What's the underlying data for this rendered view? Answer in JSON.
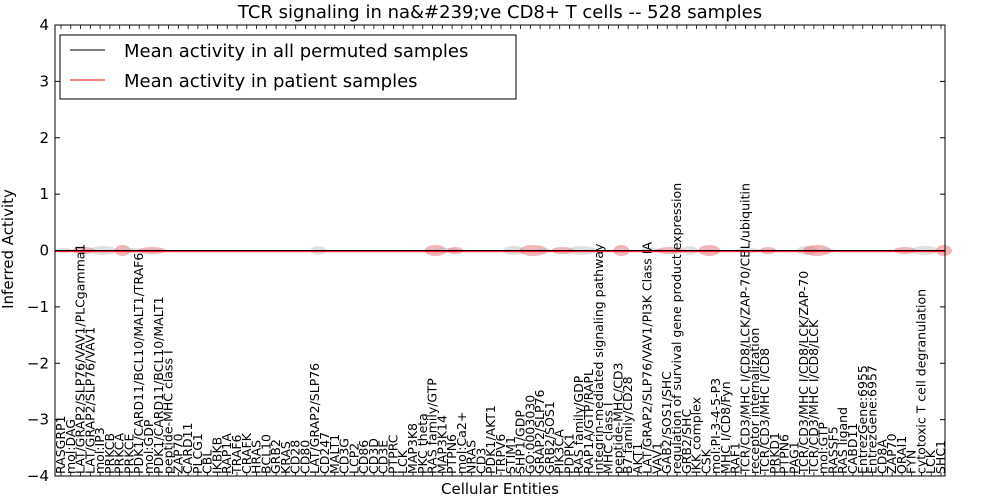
{
  "chart_data": {
    "type": "line",
    "title": "TCR signaling in na&#239;ve CD8+ T cells -- 528 samples",
    "xlabel": "Cellular Entities",
    "ylabel": "Inferred Activity",
    "ylim": [
      -4,
      4
    ],
    "yticks": [
      "4",
      "3",
      "2",
      "1",
      "0",
      "−1",
      "−2",
      "−3",
      "−4"
    ],
    "legend_position": "top-left",
    "legend": [
      {
        "label": "Mean activity in all permuted samples",
        "color": "#000000"
      },
      {
        "label": "Mean activity in patient samples",
        "color": "#ff0000"
      }
    ],
    "categories": [
      "RASGRP1",
      "mol:DAG",
      "LAT/GRAP2/SLP76/VAV1/PLCgamma1",
      "LAT/GRAP2/SLP76/VAV1",
      "mol:IP3",
      "PRKCB",
      "PRKCA",
      "PRKCE",
      "PDK1/CARD11/BCL10/MALT1/TRAF6",
      "mol:GDP",
      "PDK1/CARD11/BCL10/MALT1",
      "peptide-MHC class I",
      "ZAP70",
      "CARD11",
      "PLCG1",
      "CBL",
      "IKBKB",
      "RAP1A",
      "TRAF6",
      "CRAFK",
      "HRAS",
      "BCL10",
      "GRB2",
      "KRAS",
      "CD28",
      "CD80",
      "LAT/GRAP2/SLP76",
      "CD247",
      "MALT1",
      "CD3G",
      "LCP2",
      "CD86",
      "CD3D",
      "CD3E",
      "PTPRC",
      "LCK",
      "MAP3K8",
      "PKC theta",
      "RAS family/GTP",
      "MAP3K14",
      "PTPN6",
      "mol:Ca2+",
      "NRAS",
      "CD3",
      "PDK1/AKT1",
      "TRPV6",
      "STIM1",
      "SHP1/GDP",
      "GO:0003030",
      "GRAP2/SLP76",
      "GRB2/SOS1",
      "PIK3CA",
      "PDPK1",
      "RAS family/GDP",
      "RAP1A/GTP/RAPL",
      "integrin-mediated signaling pathway",
      "MHC class I",
      "peptide-MHC/CD3",
      "B7 family/CD28",
      "AKT1",
      "LAT/GRAP2/SLP76/VAV1/PI3K Class IA",
      "VAV1",
      "GAB2/SOS1/SHC",
      "regulation of survival gene product expression",
      "GRB2/SHC",
      "IKK complex",
      "CSK",
      "mol:PI-3-4-5-P3",
      "MHC I/CD8/Fyn",
      "RAF1",
      "TCR/CD3/MHC I/CD8/LCK/ZAP-70/CBL/ubiquitin",
      "receptor internalization",
      "TCR/CD3/MHC I/CD8",
      "PRKD1",
      "PTPN6",
      "PAG1",
      "TCR/CD3/MHC I/CD8/LCK/ZAP-70",
      "TCR/CD3/MHC I/CD8/LCK",
      "mol:GTP",
      "RASSF5",
      "RAS ligand",
      "CABD11",
      "EntrezGene:6955",
      "EntrezGene:6957",
      "CD8A",
      "ZAP70",
      "ORAI1",
      "FYN",
      "cytotoxic T cell degranulation",
      "LCK",
      "SHC1"
    ],
    "series": [
      {
        "name": "Mean activity in all permuted samples",
        "color": "#000000",
        "values": "0 for all entities",
        "constant": 0
      },
      {
        "name": "Mean activity in patient samples",
        "color": "#ff0000",
        "constant": -0.02
      }
    ]
  }
}
